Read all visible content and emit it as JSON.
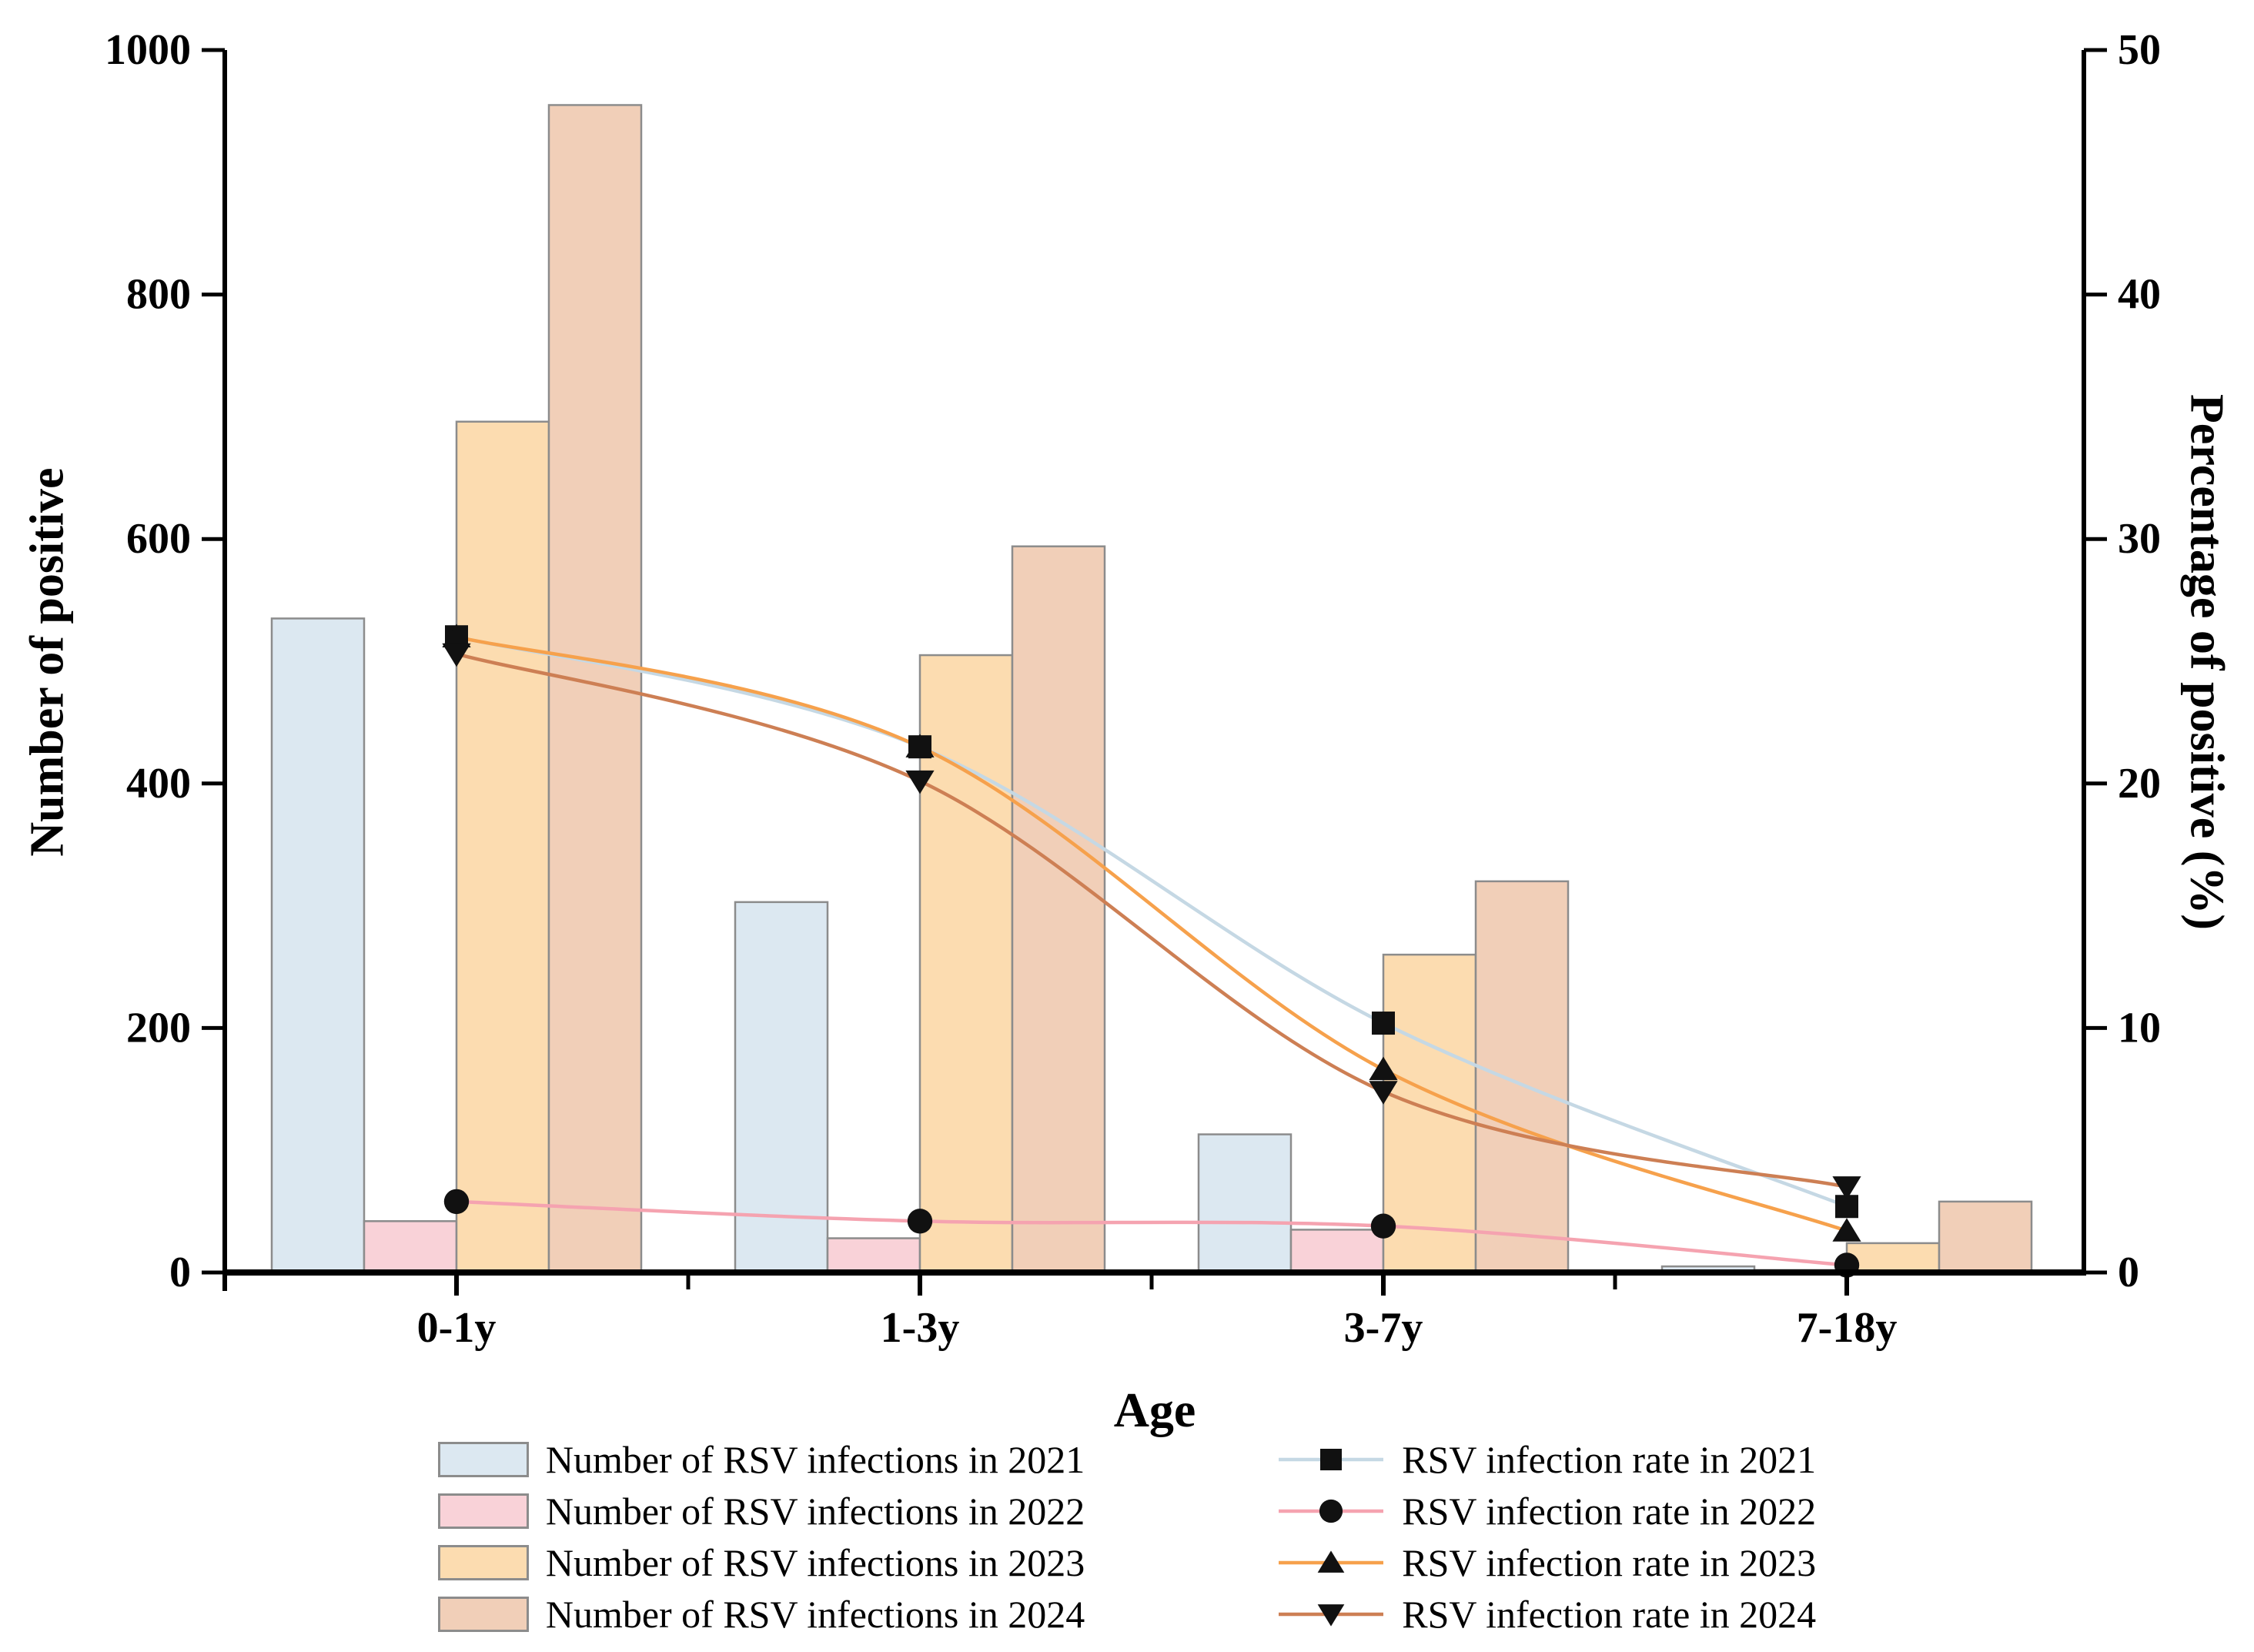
{
  "figure": {
    "background": "#ffffff",
    "axis_color": "#000000",
    "bar_edge_color": "#8c8c8c",
    "marker_color": "#111111"
  },
  "chart_data": {
    "type": "bar+line",
    "categories": [
      "0-1y",
      "1-3y",
      "3-7y",
      "7-18y"
    ],
    "xlabel": "Age",
    "ylabel_left": "Number of positive",
    "ylabel_right": "Percentage of positive (%)",
    "left_axis": {
      "min": 0,
      "max": 1000,
      "ticks": [
        0,
        200,
        400,
        600,
        800,
        1000
      ]
    },
    "right_axis": {
      "min": 0,
      "max": 50,
      "ticks": [
        0,
        10,
        20,
        30,
        40,
        50
      ]
    },
    "grid": "off",
    "legend_position": "bottom",
    "bar_series": [
      {
        "name": "bars-2021",
        "label": "Number of RSV infections in 2021",
        "color": "#dce8f1",
        "values": [
          535,
          303,
          113,
          5
        ]
      },
      {
        "name": "bars-2022",
        "label": "Number of RSV infections in 2022",
        "color": "#f9d2d8",
        "values": [
          42,
          28,
          35,
          2
        ]
      },
      {
        "name": "bars-2023",
        "label": "Number of RSV infections in 2023",
        "color": "#fcdcb0",
        "values": [
          696,
          505,
          260,
          24
        ]
      },
      {
        "name": "bars-2024",
        "label": "Number of RSV infections in 2024",
        "color": "#f1cfb8",
        "values": [
          955,
          594,
          320,
          58
        ]
      }
    ],
    "line_series": [
      {
        "name": "rate-2021",
        "label": "RSV infection rate in 2021",
        "color": "#c5d8e4",
        "marker": "square",
        "values": [
          26.0,
          21.5,
          10.2,
          2.7
        ]
      },
      {
        "name": "rate-2022",
        "label": "RSV infection rate in 2022",
        "color": "#f5a3b0",
        "marker": "circle",
        "values": [
          2.9,
          2.1,
          1.9,
          0.3
        ]
      },
      {
        "name": "rate-2023",
        "label": "RSV infection rate in 2023",
        "color": "#f6a14c",
        "marker": "triangle-up",
        "values": [
          26.0,
          21.5,
          8.3,
          1.7
        ]
      },
      {
        "name": "rate-2024",
        "label": "RSV infection rate in 2024",
        "color": "#cd7f54",
        "marker": "triangle-down",
        "values": [
          25.3,
          20.1,
          7.4,
          3.5
        ]
      }
    ]
  }
}
